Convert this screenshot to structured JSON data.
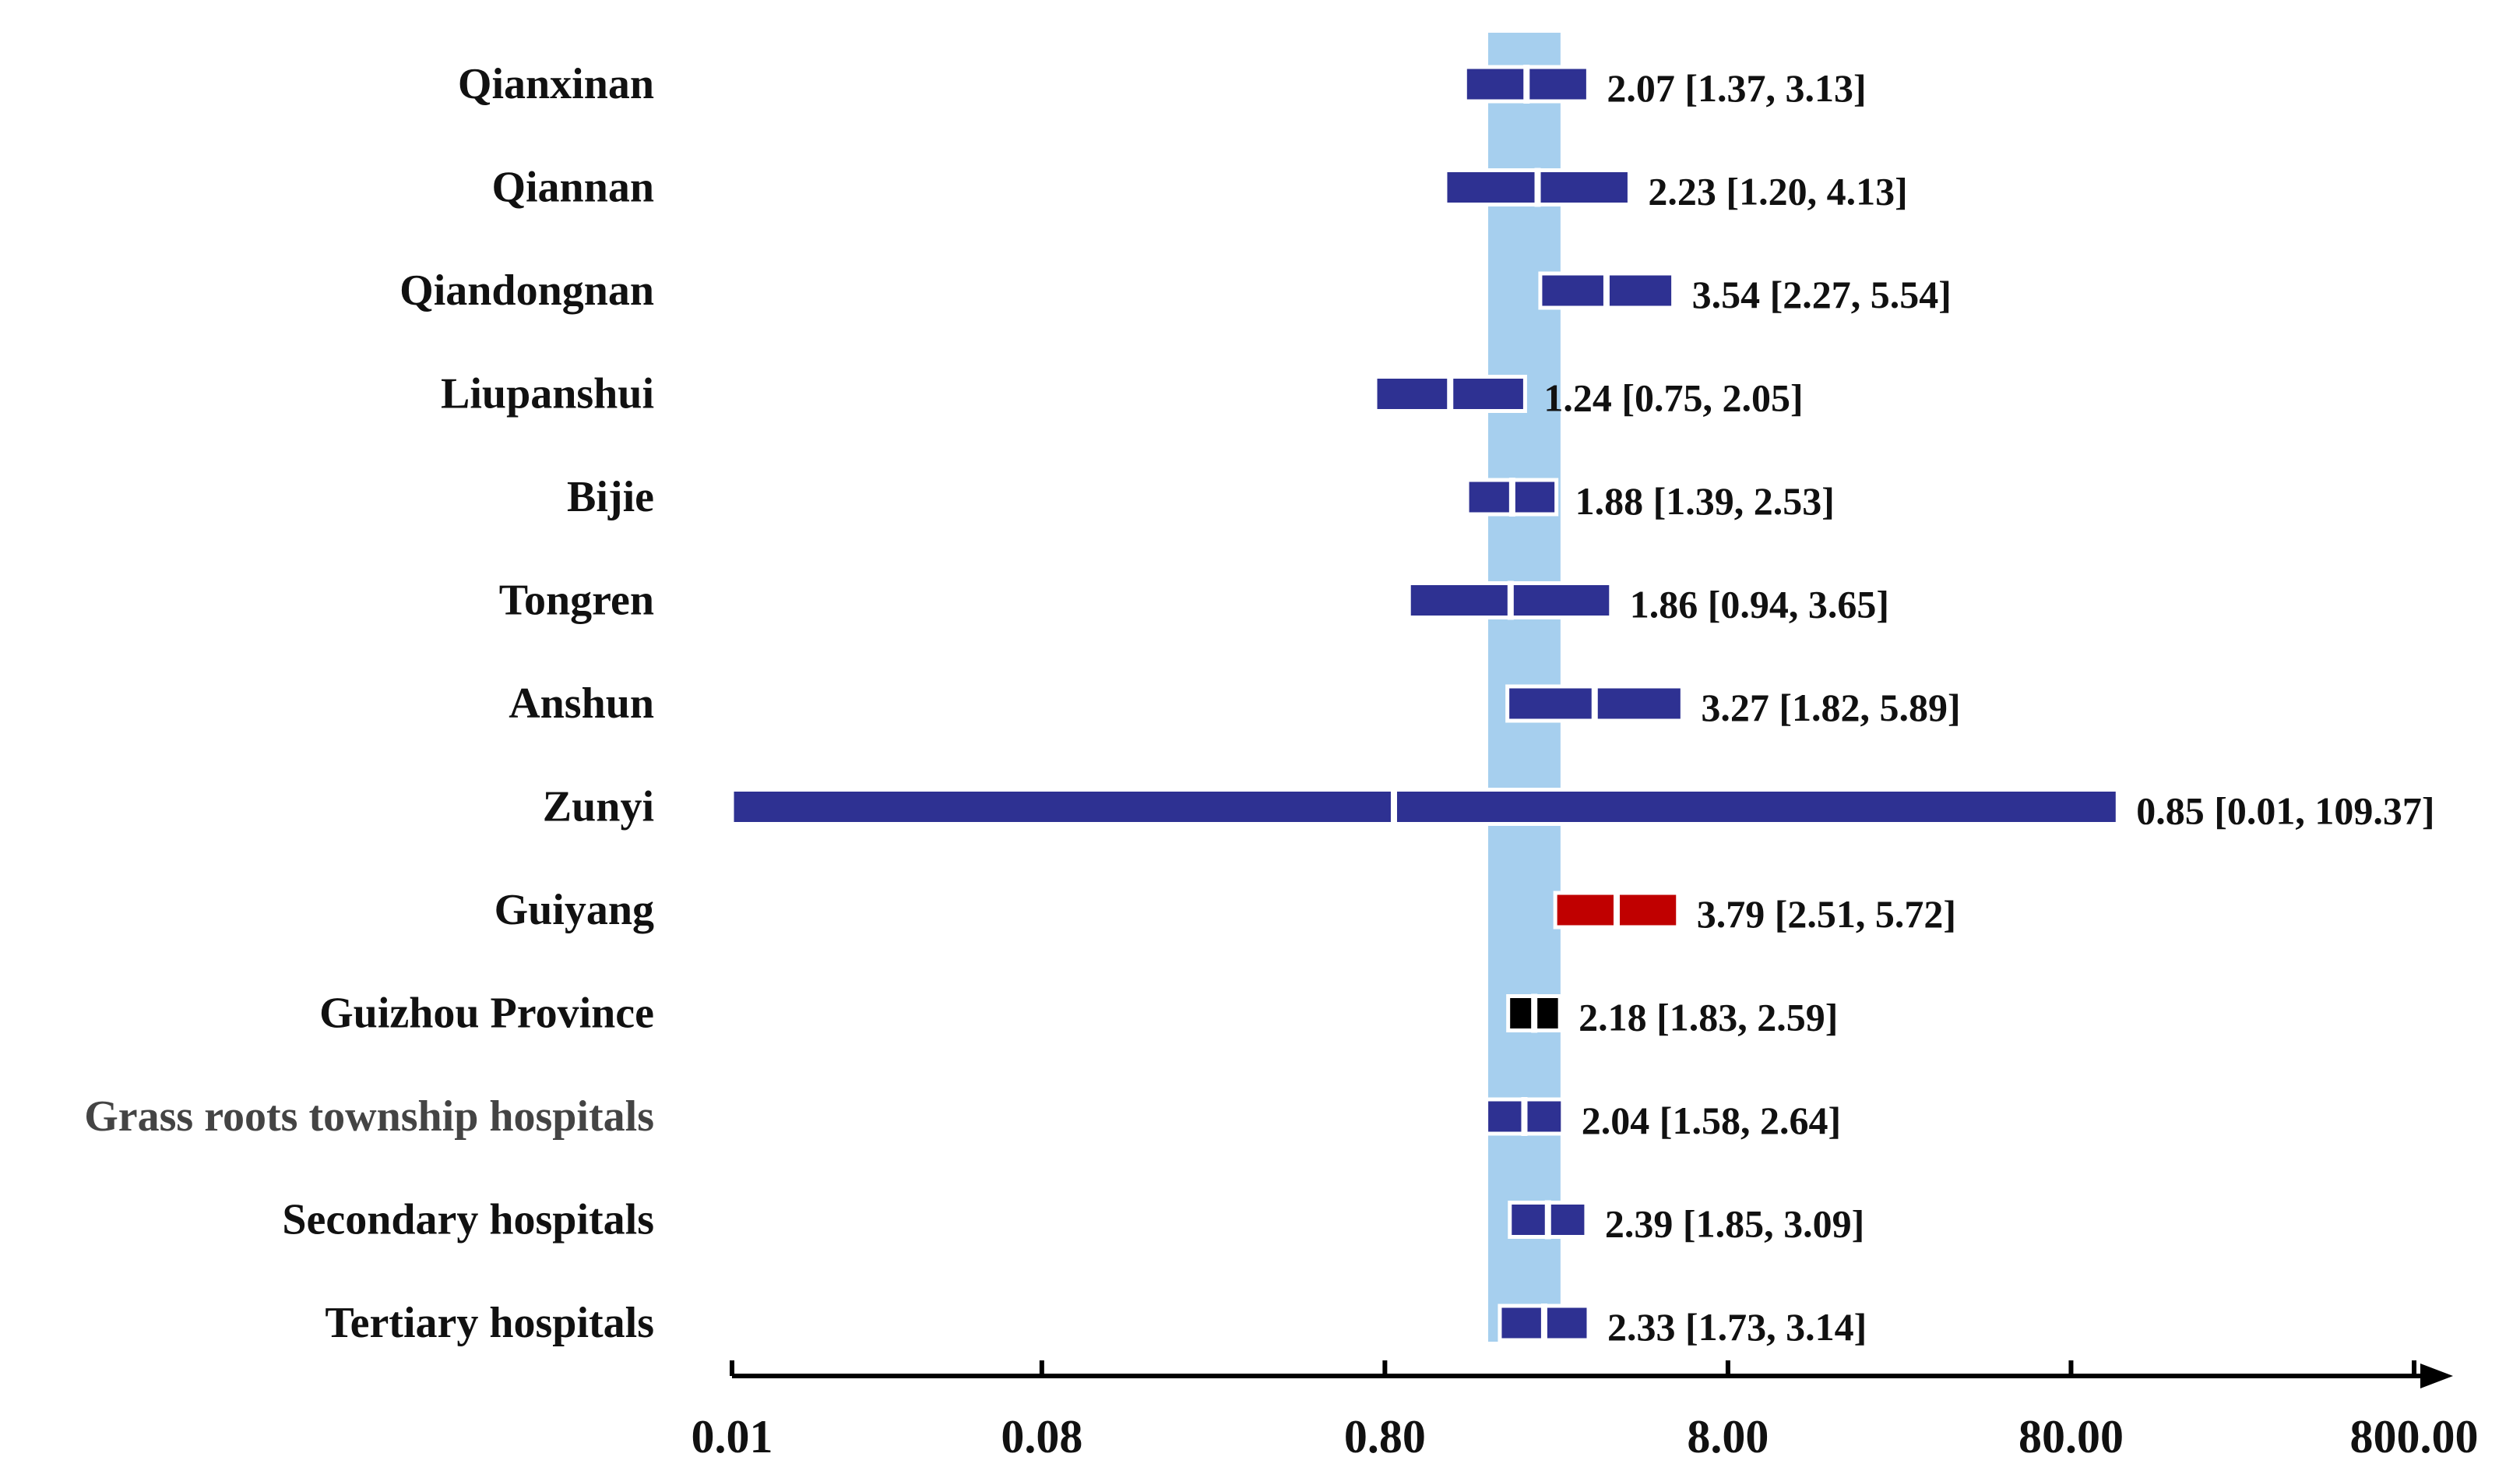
{
  "chart_data": {
    "type": "forest",
    "scale": "log",
    "xlim": [
      0.01,
      800
    ],
    "xticks": [
      {
        "value": 0.01,
        "label": "0.01"
      },
      {
        "value": 0.08,
        "label": "0.08"
      },
      {
        "value": 0.8,
        "label": "0.80"
      },
      {
        "value": 8,
        "label": "8.00"
      },
      {
        "value": 80,
        "label": "80.00"
      },
      {
        "value": 800,
        "label": "800.00"
      }
    ],
    "reference_band": [
      1.6,
      2.6
    ],
    "colors": {
      "default": "#2e3192",
      "highlight": "#c00000",
      "overall": "#000000",
      "band": "#a6cfee",
      "axis": "#000000"
    },
    "rows": [
      {
        "label": "Qianxinan",
        "estimate": 2.07,
        "lower": 1.37,
        "upper": 3.13,
        "text": "2.07 [1.37, 3.13]",
        "color": "default"
      },
      {
        "label": "Qiannan",
        "estimate": 2.23,
        "lower": 1.2,
        "upper": 4.13,
        "text": "2.23 [1.20, 4.13]",
        "color": "default"
      },
      {
        "label": "Qiandongnan",
        "estimate": 3.54,
        "lower": 2.27,
        "upper": 5.54,
        "text": "3.54 [2.27, 5.54]",
        "color": "default"
      },
      {
        "label": "Liupanshui",
        "estimate": 1.24,
        "lower": 0.75,
        "upper": 2.05,
        "text": "1.24 [0.75, 2.05]",
        "color": "default"
      },
      {
        "label": "Bijie",
        "estimate": 1.88,
        "lower": 1.39,
        "upper": 2.53,
        "text": "1.88 [1.39, 2.53]",
        "color": "default"
      },
      {
        "label": "Tongren",
        "estimate": 1.86,
        "lower": 0.94,
        "upper": 3.65,
        "text": "1.86 [0.94, 3.65]",
        "color": "default"
      },
      {
        "label": "Anshun",
        "estimate": 3.27,
        "lower": 1.82,
        "upper": 5.89,
        "text": "3.27 [1.82, 5.89]",
        "color": "default"
      },
      {
        "label": "Zunyi",
        "estimate": 0.85,
        "lower": 0.01,
        "upper": 109.37,
        "text": "0.85 [0.01, 109.37]",
        "color": "default"
      },
      {
        "label": "Guiyang",
        "estimate": 3.79,
        "lower": 2.51,
        "upper": 5.72,
        "text": "3.79 [2.51, 5.72]",
        "color": "highlight"
      },
      {
        "label": "Guizhou Province",
        "estimate": 2.18,
        "lower": 1.83,
        "upper": 2.59,
        "text": "2.18 [1.83, 2.59]",
        "color": "overall"
      },
      {
        "label": "Grass roots township hospitals",
        "estimate": 2.04,
        "lower": 1.58,
        "upper": 2.64,
        "text": "2.04 [1.58, 2.64]",
        "color": "default",
        "label_tone": "grey"
      },
      {
        "label": "Secondary hospitals",
        "estimate": 2.39,
        "lower": 1.85,
        "upper": 3.09,
        "text": "2.39 [1.85, 3.09]",
        "color": "default"
      },
      {
        "label": "Tertiary hospitals",
        "estimate": 2.33,
        "lower": 1.73,
        "upper": 3.14,
        "text": "2.33 [1.73, 3.14]",
        "color": "default"
      }
    ]
  }
}
